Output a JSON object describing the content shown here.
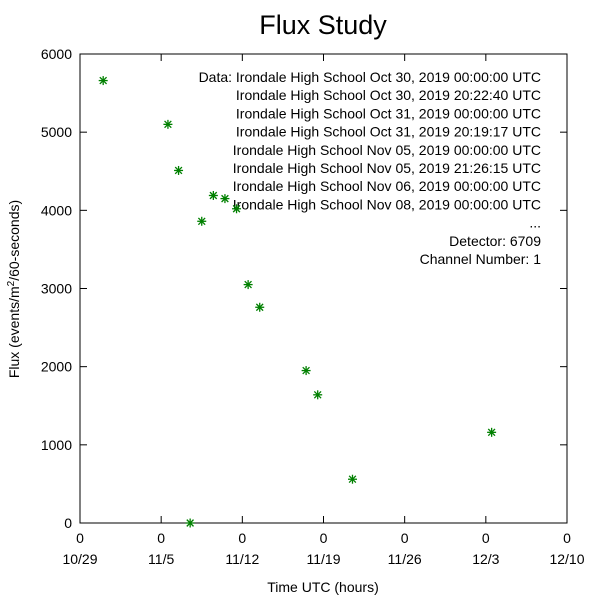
{
  "chart_data": {
    "type": "scatter",
    "title": "Flux Study",
    "xlabel": "Time UTC (hours)",
    "ylabel": "Flux (events/m",
    "ylabel_sup": "2",
    "ylabel_tail": "/60-seconds)",
    "xlim": [
      "2019-10-29",
      "2019-12-10"
    ],
    "ylim": [
      0,
      6000
    ],
    "x_ticks": [
      {
        "date": "2019-10-29",
        "top": "0",
        "bottom": "10/29"
      },
      {
        "date": "2019-11-05",
        "top": "0",
        "bottom": "11/5"
      },
      {
        "date": "2019-11-12",
        "top": "0",
        "bottom": "11/12"
      },
      {
        "date": "2019-11-19",
        "top": "0",
        "bottom": "11/19"
      },
      {
        "date": "2019-11-26",
        "top": "0",
        "bottom": "11/26"
      },
      {
        "date": "2019-12-03",
        "top": "0",
        "bottom": "12/3"
      },
      {
        "date": "2019-12-10",
        "top": "0",
        "bottom": "12/10"
      }
    ],
    "y_ticks": [
      "0",
      "1000",
      "2000",
      "3000",
      "4000",
      "5000",
      "6000"
    ],
    "grid": false,
    "legend_position": "top-right",
    "marker_color": "#008000",
    "series": [
      {
        "points": [
          {
            "x": "2019-10-31 00:00",
            "y": 5660
          },
          {
            "x": "2019-11-05 14:00",
            "y": 5100
          },
          {
            "x": "2019-11-06 12:00",
            "y": 4510
          },
          {
            "x": "2019-11-07 12:00",
            "y": 0
          },
          {
            "x": "2019-11-08 12:00",
            "y": 3860
          },
          {
            "x": "2019-11-09 12:00",
            "y": 4190
          },
          {
            "x": "2019-11-10 12:00",
            "y": 4150
          },
          {
            "x": "2019-11-11 12:00",
            "y": 4020
          },
          {
            "x": "2019-11-12 12:00",
            "y": 3050
          },
          {
            "x": "2019-11-13 12:00",
            "y": 2760
          },
          {
            "x": "2019-11-17 12:00",
            "y": 1950
          },
          {
            "x": "2019-11-18 12:00",
            "y": 1640
          },
          {
            "x": "2019-11-21 12:00",
            "y": 560
          },
          {
            "x": "2019-12-03 12:00",
            "y": 1160
          }
        ]
      }
    ],
    "legend_lines": [
      "Data: Irondale High School Oct 30, 2019 00:00:00 UTC",
      "Irondale High School Oct 30, 2019 20:22:40 UTC",
      "Irondale High School Oct 31, 2019 00:00:00 UTC",
      "Irondale High School Oct 31, 2019 20:19:17 UTC",
      "Irondale High School Nov 05, 2019 00:00:00 UTC",
      "Irondale High School Nov 05, 2019 21:26:15 UTC",
      "Irondale High School Nov 06, 2019 00:00:00 UTC",
      "Irondale High School Nov 08, 2019 00:00:00 UTC",
      "...",
      "Detector: 6709",
      "Channel Number: 1"
    ]
  }
}
